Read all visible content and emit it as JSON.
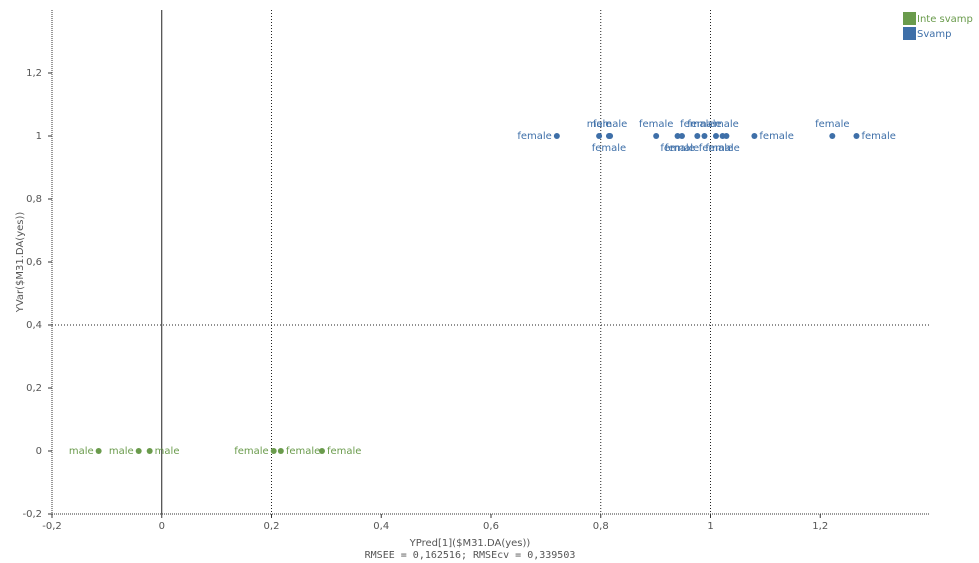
{
  "chart_data": {
    "type": "scatter",
    "x_label": "YPred[1]($M31.DA(yes))",
    "y_label": "YVar($M31.DA(yes))",
    "footer": "RMSEE = 0,162516; RMSEcv = 0,339503",
    "xlim": [
      -0.2,
      1.4
    ],
    "ylim": [
      -0.2,
      1.4
    ],
    "xticks": [
      {
        "value": -0.2,
        "label": "-0,2"
      },
      0,
      {
        "value": 0.2,
        "label": "0,2"
      },
      {
        "value": 0.4,
        "label": "0,4"
      },
      {
        "value": 0.6,
        "label": "0,6"
      },
      {
        "value": 0.8,
        "label": "0,8"
      },
      1,
      {
        "value": 1.2,
        "label": "1,2"
      }
    ],
    "yticks": [
      {
        "value": -0.2,
        "label": "-0,2"
      },
      0,
      {
        "value": 0.2,
        "label": "0,2"
      },
      {
        "value": 0.4,
        "label": "0,4"
      },
      {
        "value": 0.6,
        "label": "0,6"
      },
      {
        "value": 0.8,
        "label": "0,8"
      },
      1,
      {
        "value": 1.2,
        "label": "1,2"
      }
    ],
    "xlines": [
      0,
      0.2,
      0.8,
      1
    ],
    "ylines": [
      0.4
    ],
    "legend": "top-right",
    "series": [
      {
        "name": "Inte svamp",
        "color": "#6a9b4c",
        "x": [
          -0.115,
          -0.042,
          -0.022,
          0.204,
          0.217,
          0.292
        ],
        "y": [
          0,
          0,
          0,
          0,
          0,
          0
        ],
        "labels": [
          "male",
          "male",
          "male",
          "female",
          "female",
          "female"
        ],
        "label_pos": [
          "left",
          "left",
          "right",
          "left",
          "right",
          "right"
        ]
      },
      {
        "name": "Svamp",
        "color": "#3e6fa8",
        "x": [
          0.72,
          0.797,
          0.817,
          0.815,
          0.901,
          0.94,
          0.948,
          0.976,
          0.989,
          1.01,
          1.022,
          1.029,
          1.08,
          1.222,
          1.266
        ],
        "y": [
          1,
          1,
          1,
          1,
          1,
          1,
          1,
          1,
          1,
          1,
          1,
          1,
          1,
          1,
          1
        ],
        "labels": [
          "female",
          "male",
          "female",
          "female",
          "female",
          "female",
          "female",
          "female",
          "female",
          "female",
          "female",
          "male",
          "female",
          "female",
          "female"
        ],
        "label_pos": [
          "left",
          "above",
          "above",
          "below",
          "above",
          "below",
          "below",
          "above",
          "above",
          "below",
          "below",
          "above",
          "right",
          "above",
          "right"
        ]
      }
    ]
  }
}
